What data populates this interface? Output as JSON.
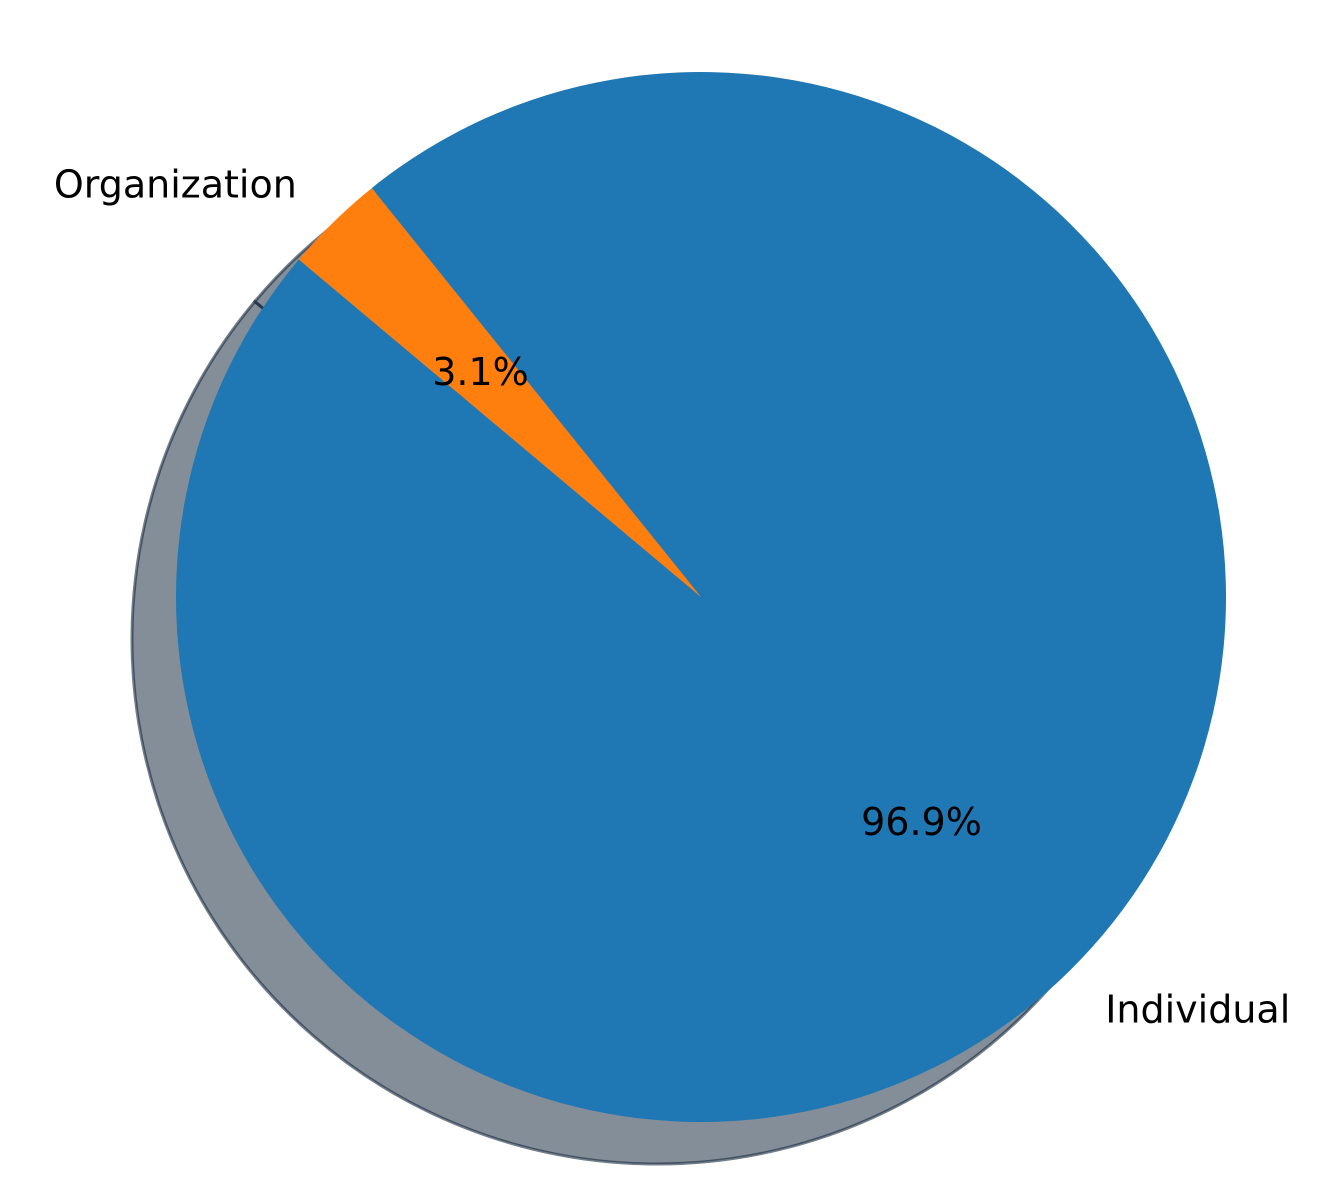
{
  "chart_data": {
    "type": "pie",
    "title": "",
    "shadow": true,
    "start_angle_deg": 140,
    "direction": "counterclockwise",
    "slices": [
      {
        "label": "Individual",
        "percent": 96.9,
        "percent_label": "96.9%",
        "color": "#1f77b4"
      },
      {
        "label": "Organization",
        "percent": 3.1,
        "percent_label": "3.1%",
        "color": "#ff7f0e"
      }
    ]
  }
}
